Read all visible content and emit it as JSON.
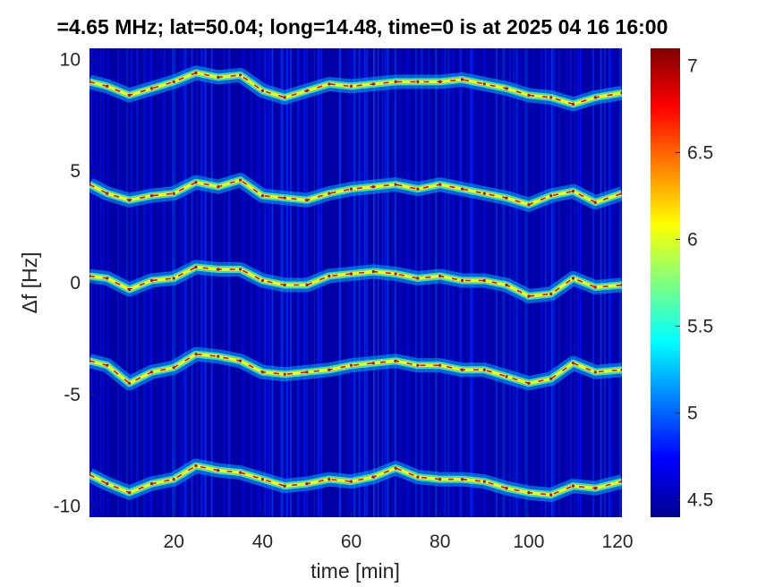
{
  "title": "=4.65 MHz;  lat=50.04; long=14.48, time=0 is at 2025 04 16 16:00",
  "chart_data": {
    "type": "heatmap",
    "title": "=4.65 MHz;  lat=50.04; long=14.48, time=0 is at 2025 04 16 16:00",
    "xlabel": "time [min]",
    "ylabel": "Δf [Hz]",
    "xlim": [
      1,
      121
    ],
    "ylim": [
      -10.5,
      10.5
    ],
    "x_ticks": [
      20,
      40,
      60,
      80,
      100,
      120
    ],
    "x_tick_labels": [
      "20",
      "40",
      "60",
      "80",
      "100",
      "120"
    ],
    "y_ticks": [
      10,
      5,
      0,
      -5,
      -10
    ],
    "y_tick_labels": [
      "10",
      "5",
      "0",
      "-5",
      "-10"
    ],
    "colorbar": {
      "colormap": "jet",
      "range": [
        4.4,
        7.1
      ],
      "ticks": [
        7,
        6.5,
        6,
        5.5,
        5,
        4.5
      ],
      "tick_labels": [
        "7",
        "6.5",
        "6",
        "5.5",
        "5",
        "4.5"
      ]
    },
    "background_level": 4.5,
    "series": [
      {
        "x": [
          1,
          5,
          10,
          15,
          20,
          25,
          30,
          35,
          40,
          45,
          50,
          55,
          60,
          65,
          70,
          75,
          80,
          85,
          90,
          95,
          100,
          105,
          110,
          115,
          121
        ],
        "y": [
          9.0,
          8.8,
          8.4,
          8.7,
          9.0,
          9.4,
          9.2,
          9.3,
          8.6,
          8.3,
          8.6,
          8.9,
          8.8,
          8.9,
          9.0,
          9.0,
          9.0,
          9.1,
          8.9,
          8.7,
          8.4,
          8.3,
          8.0,
          8.3,
          8.5
        ]
      },
      {
        "x": [
          1,
          5,
          10,
          15,
          20,
          25,
          30,
          35,
          40,
          45,
          50,
          55,
          60,
          65,
          70,
          75,
          80,
          85,
          90,
          95,
          100,
          105,
          110,
          115,
          121
        ],
        "y": [
          4.4,
          4.0,
          3.7,
          3.9,
          4.0,
          4.5,
          4.3,
          4.6,
          3.9,
          3.8,
          3.7,
          4.0,
          4.2,
          4.3,
          4.4,
          4.2,
          4.4,
          4.2,
          4.0,
          3.8,
          3.5,
          3.9,
          4.1,
          3.6,
          4.0
        ]
      },
      {
        "x": [
          1,
          5,
          10,
          15,
          20,
          25,
          30,
          35,
          40,
          45,
          50,
          55,
          60,
          65,
          70,
          75,
          80,
          85,
          90,
          95,
          100,
          105,
          110,
          115,
          121
        ],
        "y": [
          0.3,
          0.2,
          -0.3,
          0.1,
          0.2,
          0.7,
          0.6,
          0.6,
          0.1,
          -0.1,
          -0.1,
          0.3,
          0.4,
          0.5,
          0.4,
          0.2,
          0.3,
          0.1,
          0.1,
          -0.1,
          -0.6,
          -0.5,
          0.2,
          -0.2,
          -0.1
        ]
      },
      {
        "x": [
          1,
          5,
          10,
          15,
          20,
          25,
          30,
          35,
          40,
          45,
          50,
          55,
          60,
          65,
          70,
          75,
          80,
          85,
          90,
          95,
          100,
          105,
          110,
          115,
          121
        ],
        "y": [
          -3.5,
          -3.7,
          -4.5,
          -4.0,
          -3.8,
          -3.2,
          -3.3,
          -3.5,
          -4.0,
          -4.1,
          -4.0,
          -3.9,
          -3.7,
          -3.6,
          -3.5,
          -3.7,
          -3.7,
          -3.9,
          -3.9,
          -4.2,
          -4.5,
          -4.3,
          -3.6,
          -4.0,
          -3.9
        ]
      },
      {
        "x": [
          1,
          5,
          10,
          15,
          20,
          25,
          30,
          35,
          40,
          45,
          50,
          55,
          60,
          65,
          70,
          75,
          80,
          85,
          90,
          95,
          100,
          105,
          110,
          115,
          121
        ],
        "y": [
          -8.6,
          -9.0,
          -9.4,
          -9.0,
          -8.8,
          -8.2,
          -8.4,
          -8.5,
          -8.8,
          -9.1,
          -9.0,
          -8.8,
          -8.9,
          -8.7,
          -8.3,
          -8.7,
          -8.8,
          -8.8,
          -8.9,
          -9.2,
          -9.4,
          -9.5,
          -9.1,
          -9.2,
          -8.9
        ]
      }
    ]
  }
}
